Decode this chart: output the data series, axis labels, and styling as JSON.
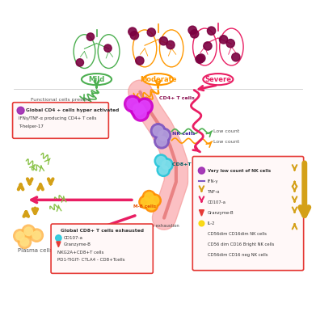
{
  "bg_color": "#ffffff",
  "mild_color": "#4caf50",
  "moderate_color": "#ff9800",
  "severe_color": "#e91e63",
  "mild_label": "Mild",
  "moderate_label": "Moderate",
  "severe_label": "Severe",
  "functional_text1": "Functional cells present",
  "functional_text2": "Functional cells present",
  "low_count_text1": "Low count",
  "low_count_text2": "Low count",
  "cd4_box_lines": [
    "Global CD4 + cells hyper activated",
    "IFNγ/TNF-α producing CD4+ T cells",
    "T-helper-17"
  ],
  "cd8_box_lines": [
    "Global CD8+ T cells exhausted",
    "CD107-a",
    "Granzyme-B",
    "NKG2A+CD8+T cells",
    "PD1-TIGIT- CTLA4 - CD8+Tcells"
  ],
  "nk_box_lines": [
    "Very low count of NK cells",
    "IFN-γ",
    "TNF-α",
    "CD107-a",
    "Granzyme-B",
    "IL-2",
    "CD56dim CD16dim NK cells",
    "CD56 dim CD16 Bright NK cells",
    "CD56dim CD16 neg NK cells"
  ],
  "plasma_label": "Plasma cells",
  "no_exhaustion1": "No exhaustion",
  "no_exhaustion2": "No exhaustion",
  "cd4_t_label": "CD4+ T cells",
  "nk_label": "NK cells",
  "cd8_t_label": "CD8+T cells",
  "mb_label": "M-B cells"
}
